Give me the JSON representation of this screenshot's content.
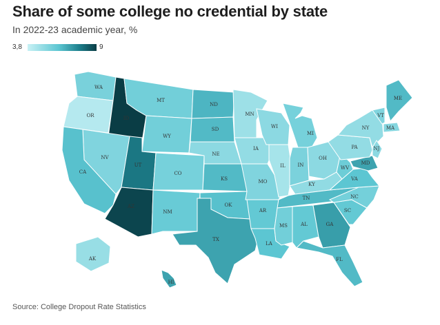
{
  "title": "Share of some college no credential by state",
  "subtitle": "In 2022-23 academic year, %",
  "legend": {
    "min_label": "3,8",
    "max_label": "9",
    "min_color": "#c8f1f5",
    "max_color": "#0a3d45"
  },
  "source": "Source: College Dropout Rate Statistics",
  "states": [
    {
      "abbr": "WA",
      "level": 0.33
    },
    {
      "abbr": "OR",
      "level": 0.08
    },
    {
      "abbr": "ID",
      "level": 1.0
    },
    {
      "abbr": "MT",
      "level": 0.36
    },
    {
      "abbr": "WY",
      "level": 0.36
    },
    {
      "abbr": "NV",
      "level": 0.3
    },
    {
      "abbr": "CA",
      "level": 0.47
    },
    {
      "abbr": "UT",
      "level": 0.78
    },
    {
      "abbr": "AZ",
      "level": 0.97
    },
    {
      "abbr": "CO",
      "level": 0.34
    },
    {
      "abbr": "NM",
      "level": 0.4
    },
    {
      "abbr": "ND",
      "level": 0.52
    },
    {
      "abbr": "SD",
      "level": 0.5
    },
    {
      "abbr": "NE",
      "level": 0.25
    },
    {
      "abbr": "KS",
      "level": 0.5
    },
    {
      "abbr": "OK",
      "level": 0.47
    },
    {
      "abbr": "TX",
      "level": 0.6
    },
    {
      "abbr": "MN",
      "level": 0.18
    },
    {
      "abbr": "IA",
      "level": 0.22
    },
    {
      "abbr": "MO",
      "level": 0.3
    },
    {
      "abbr": "AR",
      "level": 0.42
    },
    {
      "abbr": "LA",
      "level": 0.45
    },
    {
      "abbr": "WI",
      "level": 0.25
    },
    {
      "abbr": "IL",
      "level": 0.14
    },
    {
      "abbr": "MI",
      "level": 0.34
    },
    {
      "abbr": "IN",
      "level": 0.32
    },
    {
      "abbr": "OH",
      "level": 0.25
    },
    {
      "abbr": "KY",
      "level": 0.23
    },
    {
      "abbr": "TN",
      "level": 0.5
    },
    {
      "abbr": "MS",
      "level": 0.36
    },
    {
      "abbr": "AL",
      "level": 0.42
    },
    {
      "abbr": "GA",
      "level": 0.62
    },
    {
      "abbr": "FL",
      "level": 0.5
    },
    {
      "abbr": "SC",
      "level": 0.42
    },
    {
      "abbr": "NC",
      "level": 0.35
    },
    {
      "abbr": "VA",
      "level": 0.45
    },
    {
      "abbr": "WV",
      "level": 0.38
    },
    {
      "abbr": "MD",
      "level": 0.6
    },
    {
      "abbr": "PA",
      "level": 0.22
    },
    {
      "abbr": "NY",
      "level": 0.22
    },
    {
      "abbr": "NJ",
      "level": 0.25
    },
    {
      "abbr": "VT",
      "level": 0.3
    },
    {
      "abbr": "MA",
      "level": 0.28
    },
    {
      "abbr": "ME",
      "level": 0.5
    },
    {
      "abbr": "AK",
      "level": 0.2
    },
    {
      "abbr": "HI",
      "level": 0.6
    }
  ]
}
